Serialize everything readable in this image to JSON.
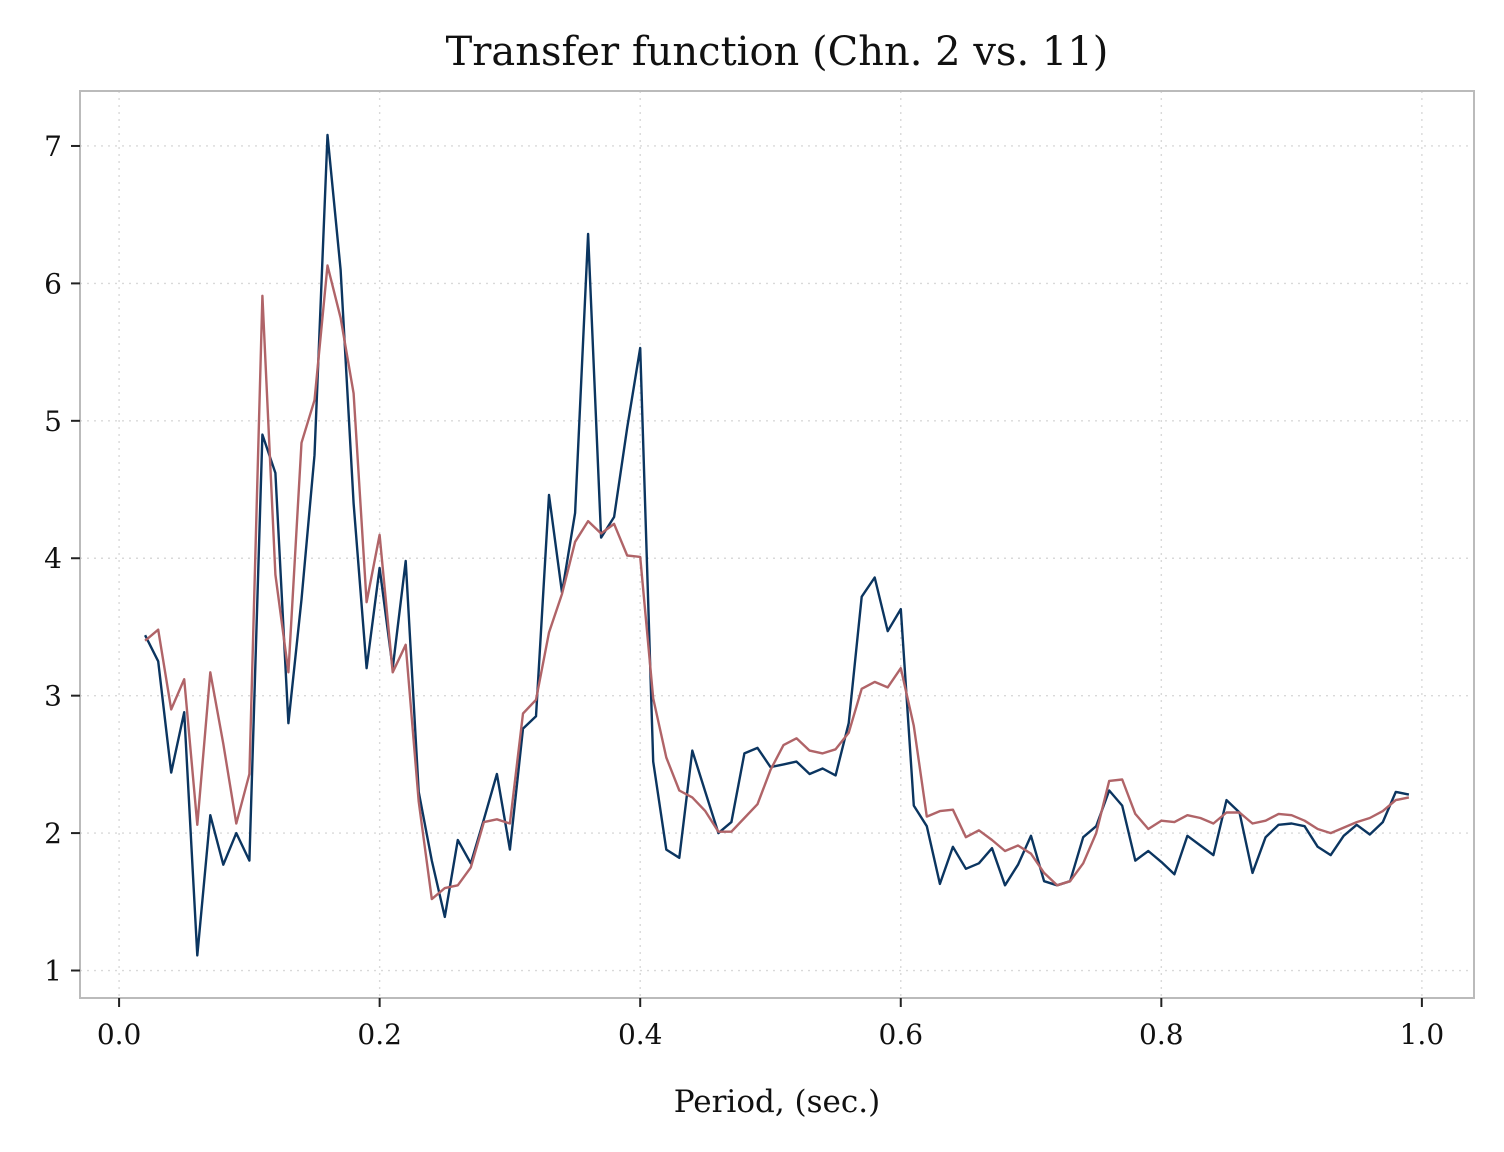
{
  "chart_data": {
    "type": "line",
    "title": "Transfer function (Chn. 2 vs. 11)",
    "xlabel": "Period, (sec.)",
    "ylabel": "",
    "xlim": [
      -0.03,
      1.04
    ],
    "ylim": [
      0.8,
      7.4
    ],
    "xticks": [
      0.0,
      0.2,
      0.4,
      0.6,
      0.8,
      1.0
    ],
    "xtick_labels": [
      "0.0",
      "0.2",
      "0.4",
      "0.6",
      "0.8",
      "1.0"
    ],
    "yticks": [
      1,
      2,
      3,
      4,
      5,
      6,
      7
    ],
    "ytick_labels": [
      "1",
      "2",
      "3",
      "4",
      "5",
      "6",
      "7"
    ],
    "grid": true,
    "legend": "none",
    "x": [
      0.02,
      0.03,
      0.04,
      0.05,
      0.06,
      0.07,
      0.08,
      0.09,
      0.1,
      0.11,
      0.12,
      0.13,
      0.14,
      0.15,
      0.16,
      0.17,
      0.18,
      0.19,
      0.2,
      0.21,
      0.22,
      0.23,
      0.24,
      0.25,
      0.26,
      0.27,
      0.28,
      0.29,
      0.3,
      0.31,
      0.32,
      0.33,
      0.34,
      0.35,
      0.36,
      0.37,
      0.38,
      0.39,
      0.4,
      0.41,
      0.42,
      0.43,
      0.44,
      0.45,
      0.46,
      0.47,
      0.48,
      0.49,
      0.5,
      0.51,
      0.52,
      0.53,
      0.54,
      0.55,
      0.56,
      0.57,
      0.58,
      0.59,
      0.6,
      0.61,
      0.62,
      0.63,
      0.64,
      0.65,
      0.66,
      0.67,
      0.68,
      0.69,
      0.7,
      0.71,
      0.72,
      0.73,
      0.74,
      0.75,
      0.76,
      0.77,
      0.78,
      0.79,
      0.8,
      0.81,
      0.82,
      0.83,
      0.84,
      0.85,
      0.86,
      0.87,
      0.88,
      0.89,
      0.9,
      0.91,
      0.92,
      0.93,
      0.94,
      0.95,
      0.96,
      0.97,
      0.98,
      0.99
    ],
    "series": [
      {
        "color": "#0b3560",
        "values": [
          3.44,
          3.25,
          2.44,
          2.88,
          1.11,
          2.13,
          1.77,
          2.0,
          1.8,
          4.9,
          4.62,
          2.8,
          3.7,
          4.75,
          7.08,
          6.1,
          4.4,
          3.2,
          3.93,
          3.2,
          3.98,
          2.3,
          1.8,
          1.39,
          1.95,
          1.78,
          2.1,
          2.43,
          1.88,
          2.76,
          2.85,
          4.46,
          3.75,
          4.33,
          6.36,
          4.15,
          4.3,
          4.95,
          5.53,
          2.52,
          1.88,
          1.82,
          2.6,
          2.3,
          2.0,
          2.08,
          2.58,
          2.62,
          2.48,
          2.5,
          2.52,
          2.43,
          2.47,
          2.42,
          2.8,
          3.72,
          3.86,
          3.47,
          3.63,
          2.2,
          2.05,
          1.63,
          1.9,
          1.74,
          1.78,
          1.89,
          1.62,
          1.77,
          1.98,
          1.65,
          1.62,
          1.65,
          1.97,
          2.05,
          2.31,
          2.2,
          1.8,
          1.87,
          1.79,
          1.7,
          1.98,
          1.91,
          1.84,
          2.24,
          2.15,
          1.71,
          1.97,
          2.06,
          2.07,
          2.05,
          1.9,
          1.84,
          1.98,
          2.06,
          1.99,
          2.08,
          2.3,
          2.28
        ]
      },
      {
        "color": "#b06468",
        "values": [
          3.4,
          3.48,
          2.9,
          3.12,
          2.06,
          3.17,
          2.65,
          2.07,
          2.43,
          5.91,
          3.88,
          3.17,
          4.84,
          5.15,
          6.13,
          5.75,
          5.2,
          3.68,
          4.17,
          3.17,
          3.37,
          2.23,
          1.52,
          1.6,
          1.62,
          1.75,
          2.08,
          2.1,
          2.07,
          2.87,
          2.97,
          3.46,
          3.74,
          4.12,
          4.27,
          4.18,
          4.25,
          4.02,
          4.01,
          2.98,
          2.55,
          2.31,
          2.26,
          2.16,
          2.01,
          2.01,
          2.11,
          2.21,
          2.46,
          2.64,
          2.69,
          2.6,
          2.58,
          2.61,
          2.73,
          3.05,
          3.1,
          3.06,
          3.2,
          2.78,
          2.12,
          2.16,
          2.17,
          1.97,
          2.02,
          1.95,
          1.87,
          1.91,
          1.85,
          1.71,
          1.62,
          1.65,
          1.78,
          2.0,
          2.38,
          2.39,
          2.14,
          2.03,
          2.09,
          2.08,
          2.13,
          2.11,
          2.07,
          2.15,
          2.15,
          2.07,
          2.09,
          2.14,
          2.13,
          2.09,
          2.03,
          2.0,
          2.04,
          2.08,
          2.11,
          2.16,
          2.24,
          2.26
        ]
      }
    ]
  }
}
